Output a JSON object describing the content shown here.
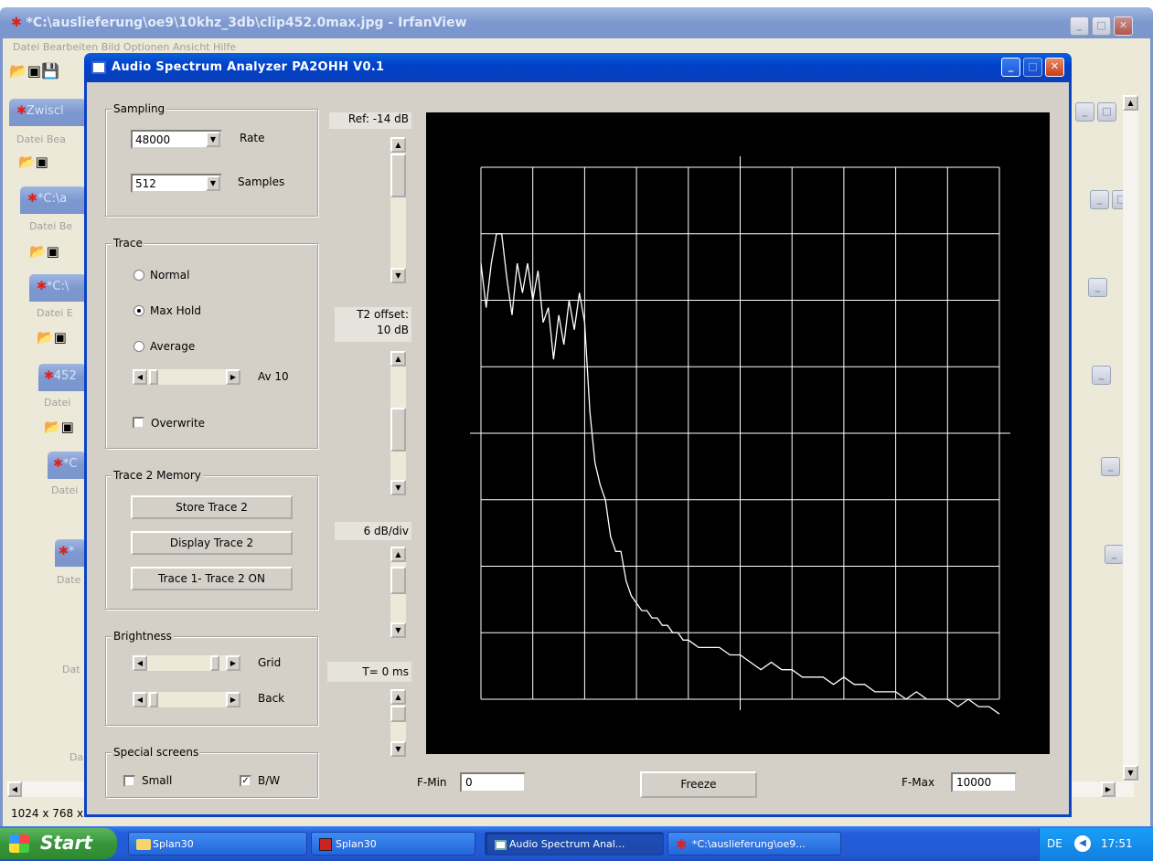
{
  "bg_window": {
    "title": "*C:\\auslieferung\\oe9\\10khz_3db\\clip452.0max.jpg - IrfanView",
    "menu": "Datei  Bearbeiten  Bild  Optionen  Ansicht  Hilfe",
    "status": "1024 x 768 x",
    "stack_titles": [
      "Zwiscl",
      "*C:\\a",
      "*C:\\",
      "452",
      "*C",
      "*"
    ],
    "stack_menus": [
      "Datei  Bea",
      "Datei  Be",
      "Datei  E",
      "Datei",
      "Datei",
      "Date",
      "Dat",
      "Da"
    ]
  },
  "app": {
    "title": "Audio Spectrum Analyzer PA2OHH V0.1",
    "sampling": {
      "group": "Sampling",
      "rate_value": "48000",
      "rate_label": "Rate",
      "samples_value": "512",
      "samples_label": "Samples"
    },
    "trace": {
      "group": "Trace",
      "normal": "Normal",
      "maxhold": "Max Hold",
      "average": "Average",
      "av_label": "Av 10",
      "overwrite": "Overwrite",
      "selected": "maxhold"
    },
    "memory": {
      "group": "Trace 2 Memory",
      "store": "Store Trace 2",
      "display": "Display Trace 2",
      "diff": "Trace 1- Trace 2 ON"
    },
    "brightness": {
      "group": "Brightness",
      "grid": "Grid",
      "back": "Back"
    },
    "special": {
      "group": "Special screens",
      "small": "Small",
      "bw": "B/W",
      "small_checked": false,
      "bw_checked": true
    },
    "labels": {
      "ref": "Ref: -14 dB",
      "t2_line1": "T2 offset:",
      "t2_line2": "10 dB",
      "dbdiv": "6 dB/div",
      "tms": "T= 0 ms"
    },
    "fmin_label": "F-Min",
    "fmin_value": "0",
    "fmax_label": "F-Max",
    "fmax_value": "10000",
    "freeze": "Freeze"
  },
  "chart_data": {
    "type": "line",
    "xlim": [
      0,
      10000
    ],
    "x": [
      0,
      100,
      200,
      300,
      400,
      500,
      600,
      700,
      800,
      900,
      1000,
      1100,
      1200,
      1300,
      1400,
      1500,
      1600,
      1700,
      1800,
      1900,
      2000,
      2100,
      2200,
      2300,
      2400,
      2500,
      2600,
      2700,
      2800,
      2900,
      3000,
      3100,
      3200,
      3300,
      3400,
      3500,
      3600,
      3700,
      3800,
      3900,
      4000,
      4200,
      4400,
      4600,
      4800,
      5000,
      5200,
      5400,
      5600,
      5800,
      6000,
      6200,
      6400,
      6600,
      6800,
      7000,
      7200,
      7400,
      7600,
      7800,
      8000,
      8200,
      8400,
      8600,
      8800,
      9000,
      9200,
      9400,
      9600,
      9800,
      10000
    ],
    "y": [
      -3,
      -9,
      -3,
      1,
      1,
      -5,
      -10,
      -3,
      -7,
      -3,
      -8,
      -4,
      -11,
      -9,
      -16,
      -10,
      -14,
      -8,
      -12,
      -7,
      -11,
      -23,
      -30,
      -33,
      -35,
      -40,
      -42,
      -42,
      -46,
      -48,
      -49,
      -50,
      -50,
      -51,
      -51,
      -52,
      -52,
      -53,
      -53,
      -54,
      -54,
      -55,
      -55,
      -55,
      -56,
      -56,
      -57,
      -58,
      -57,
      -58,
      -58,
      -59,
      -59,
      -59,
      -60,
      -59,
      -60,
      -60,
      -61,
      -61,
      -61,
      -62,
      -61,
      -62,
      -62,
      -62,
      -63,
      -62,
      -63,
      -63,
      -64
    ],
    "ylim": [
      -62,
      10
    ],
    "grid": true
  },
  "taskbar": {
    "start": "Start",
    "items": [
      "Splan30",
      "Splan30",
      "Audio Spectrum Anal...",
      "*C:\\auslieferung\\oe9..."
    ],
    "lang": "DE",
    "clock": "17:51"
  }
}
